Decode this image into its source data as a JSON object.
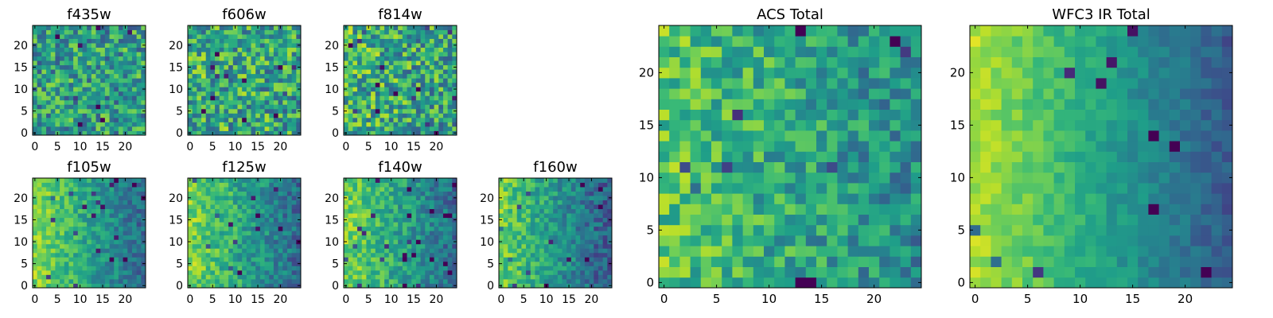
{
  "chart_data": [
    {
      "type": "heatmap",
      "title": "f435w",
      "colormap": "viridis",
      "grid": false,
      "xlim": [
        -0.5,
        24.5
      ],
      "ylim": [
        -0.5,
        24.5
      ],
      "xticks": [
        0,
        5,
        10,
        15,
        20
      ],
      "yticks": [
        0,
        5,
        10,
        15,
        20
      ],
      "size": [
        25,
        25
      ],
      "pattern": {
        "base": 0.55,
        "xgrad": 0.0,
        "noise": 0.28,
        "seed": 11
      }
    },
    {
      "type": "heatmap",
      "title": "f606w",
      "colormap": "viridis",
      "grid": false,
      "xlim": [
        -0.5,
        24.5
      ],
      "ylim": [
        -0.5,
        24.5
      ],
      "xticks": [
        0,
        5,
        10,
        15,
        20
      ],
      "yticks": [
        0,
        5,
        10,
        15,
        20
      ],
      "size": [
        25,
        25
      ],
      "pattern": {
        "base": 0.62,
        "xgrad": 0.05,
        "noise": 0.3,
        "seed": 23
      }
    },
    {
      "type": "heatmap",
      "title": "f814w",
      "colormap": "viridis",
      "grid": false,
      "xlim": [
        -0.5,
        24.5
      ],
      "ylim": [
        -0.5,
        24.5
      ],
      "xticks": [
        0,
        5,
        10,
        15,
        20
      ],
      "yticks": [
        0,
        5,
        10,
        15,
        20
      ],
      "size": [
        25,
        25
      ],
      "pattern": {
        "base": 0.65,
        "xgrad": 0.1,
        "noise": 0.3,
        "seed": 37
      }
    },
    {
      "type": "heatmap",
      "title": "f105w",
      "colormap": "viridis",
      "grid": false,
      "xlim": [
        -0.5,
        24.5
      ],
      "ylim": [
        -0.5,
        24.5
      ],
      "xticks": [
        0,
        5,
        10,
        15,
        20
      ],
      "yticks": [
        0,
        5,
        10,
        15,
        20
      ],
      "size": [
        25,
        25
      ],
      "pattern": {
        "base": 0.82,
        "xgrad": 0.48,
        "noise": 0.14,
        "seed": 41
      }
    },
    {
      "type": "heatmap",
      "title": "f125w",
      "colormap": "viridis",
      "grid": false,
      "xlim": [
        -0.5,
        24.5
      ],
      "ylim": [
        -0.5,
        24.5
      ],
      "xticks": [
        0,
        5,
        10,
        15,
        20
      ],
      "yticks": [
        0,
        5,
        10,
        15,
        20
      ],
      "size": [
        25,
        25
      ],
      "pattern": {
        "base": 0.8,
        "xgrad": 0.45,
        "noise": 0.16,
        "seed": 53
      }
    },
    {
      "type": "heatmap",
      "title": "f140w",
      "colormap": "viridis",
      "grid": false,
      "xlim": [
        -0.5,
        24.5
      ],
      "ylim": [
        -0.5,
        24.5
      ],
      "xticks": [
        0,
        5,
        10,
        15,
        20
      ],
      "yticks": [
        0,
        5,
        10,
        15,
        20
      ],
      "size": [
        25,
        25
      ],
      "pattern": {
        "base": 0.8,
        "xgrad": 0.45,
        "noise": 0.16,
        "seed": 67
      }
    },
    {
      "type": "heatmap",
      "title": "f160w",
      "colormap": "viridis",
      "grid": false,
      "xlim": [
        -0.5,
        24.5
      ],
      "ylim": [
        -0.5,
        24.5
      ],
      "xticks": [
        0,
        5,
        10,
        15,
        20
      ],
      "yticks": [
        0,
        5,
        10,
        15,
        20
      ],
      "size": [
        25,
        25
      ],
      "pattern": {
        "base": 0.78,
        "xgrad": 0.5,
        "noise": 0.16,
        "seed": 79
      }
    },
    {
      "type": "heatmap",
      "title": "ACS Total",
      "colormap": "viridis",
      "grid": false,
      "xlim": [
        -0.5,
        24.5
      ],
      "ylim": [
        -0.5,
        24.5
      ],
      "xticks": [
        0,
        5,
        10,
        15,
        20
      ],
      "yticks": [
        0,
        5,
        10,
        15,
        20
      ],
      "size": [
        25,
        25
      ],
      "pattern": {
        "base": 0.72,
        "xgrad": 0.25,
        "noise": 0.2,
        "seed": 97
      }
    },
    {
      "type": "heatmap",
      "title": "WFC3 IR Total",
      "colormap": "viridis",
      "grid": false,
      "xlim": [
        -0.5,
        24.5
      ],
      "ylim": [
        -0.5,
        24.5
      ],
      "xticks": [
        0,
        5,
        10,
        15,
        20
      ],
      "yticks": [
        0,
        5,
        10,
        15,
        20
      ],
      "size": [
        25,
        25
      ],
      "pattern": {
        "base": 0.88,
        "xgrad": 0.6,
        "noise": 0.08,
        "seed": 113
      }
    }
  ]
}
